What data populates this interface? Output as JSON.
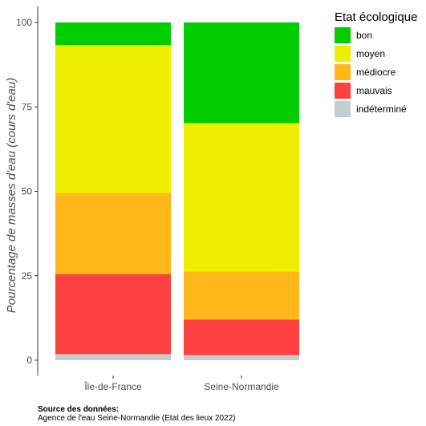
{
  "chart_data": {
    "type": "bar",
    "stacked": true,
    "categories": [
      "Île-de-France",
      "Seine-Normandie"
    ],
    "series": [
      {
        "name": "indéterminé",
        "color": "#c4cdd0",
        "values": [
          1.8,
          1.5
        ]
      },
      {
        "name": "mauvais",
        "color": "#ff4040",
        "values": [
          23.7,
          10.5
        ]
      },
      {
        "name": "médiocre",
        "color": "#ffb719",
        "values": [
          24,
          14.3
        ]
      },
      {
        "name": "moyen",
        "color": "#eeee00",
        "values": [
          43.8,
          43.9
        ]
      },
      {
        "name": "bon",
        "color": "#00cc00",
        "values": [
          6.7,
          29.8
        ]
      }
    ],
    "ylabel": "Pourcentage de masses d'eau (cours d'eau)",
    "xlabel": "",
    "ylim": [
      0,
      100
    ],
    "yticks": [
      0,
      25,
      50,
      75,
      100
    ],
    "legend": {
      "title": "Etat écologique",
      "position": "right",
      "order": [
        "bon",
        "moyen",
        "médiocre",
        "mauvais",
        "indéterminé"
      ]
    },
    "grid": false
  },
  "caption": {
    "title": "Source des données:",
    "text": "Agence de l'eau Seine-Normandie (Etat des lieux 2022)"
  }
}
